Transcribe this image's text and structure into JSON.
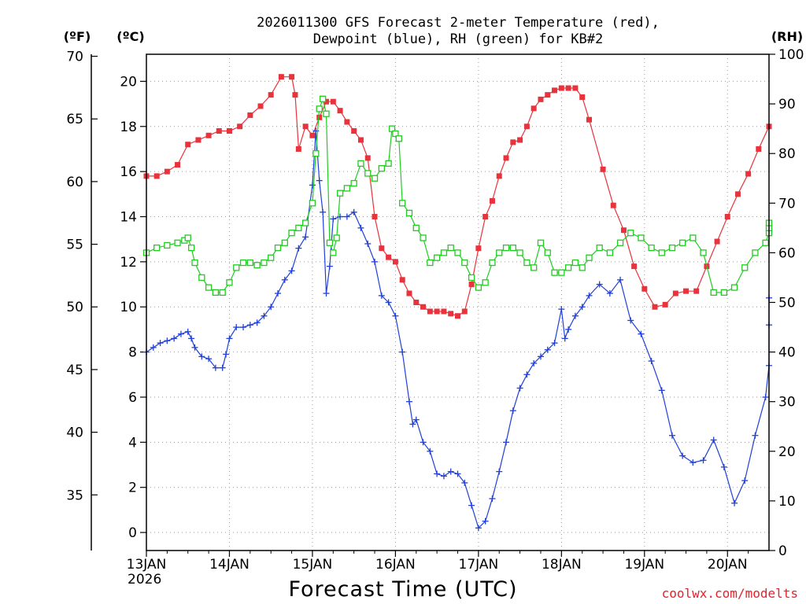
{
  "chart_data": {
    "type": "line",
    "title_line1": "2026011300 GFS Forecast 2-meter Temperature (red),",
    "title_line2": "Dewpoint (blue), RH (green) for KB#2",
    "xlabel": "Forecast Time (UTC)",
    "credit": "coolwx.com/modelts",
    "units": {
      "fahrenheit": "(ºF)",
      "celsius": "(ºC)",
      "rh": "(RH)"
    },
    "x_unit": "hours since 2026-01-13 00Z",
    "xlim": [
      0,
      180
    ],
    "celsius_axis": {
      "ylim": [
        -0.8,
        21.2
      ],
      "ticks": [
        "0",
        "2",
        "4",
        "6",
        "8",
        "10",
        "12",
        "14",
        "16",
        "18",
        "20"
      ]
    },
    "fahrenheit_axis": {
      "ticks": [
        "35",
        "40",
        "45",
        "50",
        "55",
        "60",
        "65",
        "70"
      ]
    },
    "rh_axis": {
      "ylim": [
        0,
        100
      ],
      "ticks": [
        "0",
        "10",
        "20",
        "30",
        "40",
        "50",
        "60",
        "70",
        "80",
        "90",
        "100"
      ]
    },
    "x_ticks": [
      {
        "label": "13JAN",
        "hour": 0
      },
      {
        "label": "14JAN",
        "hour": 24
      },
      {
        "label": "15JAN",
        "hour": 48
      },
      {
        "label": "16JAN",
        "hour": 72
      },
      {
        "label": "17JAN",
        "hour": 96
      },
      {
        "label": "18JAN",
        "hour": 120
      },
      {
        "label": "19JAN",
        "hour": 144
      },
      {
        "label": "20JAN",
        "hour": 168
      }
    ],
    "year_label": "2026",
    "series": [
      {
        "name": "Temperature",
        "axis": "celsius",
        "color": "#e8323c",
        "marker": "filled-square",
        "points": [
          [
            0,
            15.8
          ],
          [
            3,
            15.8
          ],
          [
            6,
            16.0
          ],
          [
            9,
            16.3
          ],
          [
            12,
            17.2
          ],
          [
            15,
            17.4
          ],
          [
            18,
            17.6
          ],
          [
            21,
            17.8
          ],
          [
            24,
            17.8
          ],
          [
            27,
            18.0
          ],
          [
            30,
            18.5
          ],
          [
            33,
            18.9
          ],
          [
            36,
            19.4
          ],
          [
            39,
            20.2
          ],
          [
            42,
            20.2
          ],
          [
            43,
            19.4
          ],
          [
            44,
            17.0
          ],
          [
            46,
            18.0
          ],
          [
            48,
            17.6
          ],
          [
            50,
            18.4
          ],
          [
            52,
            19.1
          ],
          [
            54,
            19.1
          ],
          [
            56,
            18.7
          ],
          [
            58,
            18.2
          ],
          [
            60,
            17.8
          ],
          [
            62,
            17.4
          ],
          [
            64,
            16.6
          ],
          [
            66,
            14.0
          ],
          [
            68,
            12.6
          ],
          [
            70,
            12.2
          ],
          [
            72,
            12.0
          ],
          [
            74,
            11.2
          ],
          [
            76,
            10.6
          ],
          [
            78,
            10.2
          ],
          [
            80,
            10.0
          ],
          [
            82,
            9.8
          ],
          [
            84,
            9.8
          ],
          [
            86,
            9.8
          ],
          [
            88,
            9.7
          ],
          [
            90,
            9.6
          ],
          [
            92,
            9.8
          ],
          [
            94,
            11.0
          ],
          [
            96,
            12.6
          ],
          [
            98,
            14.0
          ],
          [
            100,
            14.7
          ],
          [
            102,
            15.8
          ],
          [
            104,
            16.6
          ],
          [
            106,
            17.3
          ],
          [
            108,
            17.4
          ],
          [
            110,
            18.0
          ],
          [
            112,
            18.8
          ],
          [
            114,
            19.2
          ],
          [
            116,
            19.4
          ],
          [
            118,
            19.6
          ],
          [
            120,
            19.7
          ],
          [
            122,
            19.7
          ],
          [
            124,
            19.7
          ],
          [
            126,
            19.3
          ],
          [
            128,
            18.3
          ],
          [
            132,
            16.1
          ],
          [
            135,
            14.5
          ],
          [
            138,
            13.4
          ],
          [
            141,
            11.8
          ],
          [
            144,
            10.8
          ],
          [
            147,
            10.0
          ],
          [
            150,
            10.1
          ],
          [
            153,
            10.6
          ],
          [
            156,
            10.7
          ],
          [
            159,
            10.7
          ],
          [
            162,
            11.8
          ],
          [
            165,
            12.9
          ],
          [
            168,
            14.0
          ],
          [
            171,
            15.0
          ],
          [
            174,
            15.9
          ],
          [
            177,
            17.0
          ],
          [
            180,
            18.0
          ]
        ]
      },
      {
        "name": "Dewpoint",
        "axis": "celsius",
        "color": "#2040d8",
        "marker": "plus",
        "points": [
          [
            0,
            8.0
          ],
          [
            2,
            8.2
          ],
          [
            4,
            8.4
          ],
          [
            6,
            8.5
          ],
          [
            8,
            8.6
          ],
          [
            10,
            8.8
          ],
          [
            12,
            8.9
          ],
          [
            13,
            8.6
          ],
          [
            14,
            8.2
          ],
          [
            16,
            7.8
          ],
          [
            18,
            7.7
          ],
          [
            20,
            7.3
          ],
          [
            22,
            7.3
          ],
          [
            23,
            7.9
          ],
          [
            24,
            8.6
          ],
          [
            26,
            9.1
          ],
          [
            28,
            9.1
          ],
          [
            30,
            9.2
          ],
          [
            32,
            9.3
          ],
          [
            34,
            9.6
          ],
          [
            36,
            10.0
          ],
          [
            38,
            10.6
          ],
          [
            40,
            11.2
          ],
          [
            42,
            11.6
          ],
          [
            44,
            12.6
          ],
          [
            46,
            13.1
          ],
          [
            48,
            15.4
          ],
          [
            49,
            17.8
          ],
          [
            50,
            15.6
          ],
          [
            51,
            14.2
          ],
          [
            52,
            10.6
          ],
          [
            53,
            11.8
          ],
          [
            54,
            13.9
          ],
          [
            56,
            14.0
          ],
          [
            58,
            14.0
          ],
          [
            60,
            14.2
          ],
          [
            62,
            13.5
          ],
          [
            64,
            12.8
          ],
          [
            66,
            12.0
          ],
          [
            68,
            10.5
          ],
          [
            70,
            10.2
          ],
          [
            72,
            9.6
          ],
          [
            74,
            8.0
          ],
          [
            76,
            5.8
          ],
          [
            77,
            4.8
          ],
          [
            78,
            5.0
          ],
          [
            80,
            4.0
          ],
          [
            82,
            3.6
          ],
          [
            84,
            2.6
          ],
          [
            86,
            2.5
          ],
          [
            88,
            2.7
          ],
          [
            90,
            2.6
          ],
          [
            92,
            2.2
          ],
          [
            94,
            1.2
          ],
          [
            96,
            0.2
          ],
          [
            98,
            0.5
          ],
          [
            100,
            1.5
          ],
          [
            102,
            2.7
          ],
          [
            104,
            4.0
          ],
          [
            106,
            5.4
          ],
          [
            108,
            6.4
          ],
          [
            110,
            7.0
          ],
          [
            112,
            7.5
          ],
          [
            114,
            7.8
          ],
          [
            116,
            8.1
          ],
          [
            118,
            8.4
          ],
          [
            120,
            9.9
          ],
          [
            121,
            8.6
          ],
          [
            122,
            9.0
          ],
          [
            124,
            9.6
          ],
          [
            126,
            10.0
          ],
          [
            128,
            10.5
          ],
          [
            131,
            11.0
          ],
          [
            134,
            10.6
          ],
          [
            137,
            11.2
          ],
          [
            140,
            9.4
          ],
          [
            143,
            8.8
          ],
          [
            146,
            7.6
          ],
          [
            149,
            6.3
          ],
          [
            152,
            4.3
          ],
          [
            155,
            3.4
          ],
          [
            158,
            3.1
          ],
          [
            161,
            3.2
          ],
          [
            164,
            4.1
          ],
          [
            167,
            2.9
          ],
          [
            170,
            1.3
          ],
          [
            173,
            2.3
          ],
          [
            176,
            4.3
          ],
          [
            179,
            6.0
          ],
          [
            182,
            7.4
          ],
          [
            185,
            9.2
          ],
          [
            188,
            10.4
          ]
        ]
      },
      {
        "name": "RH",
        "axis": "rh",
        "color": "#20cc20",
        "marker": "open-square",
        "points": [
          [
            0,
            60
          ],
          [
            3,
            61
          ],
          [
            6,
            61.5
          ],
          [
            9,
            62
          ],
          [
            11,
            62.5
          ],
          [
            12,
            63
          ],
          [
            13,
            61
          ],
          [
            14,
            58
          ],
          [
            16,
            55
          ],
          [
            18,
            53
          ],
          [
            20,
            52
          ],
          [
            22,
            52
          ],
          [
            24,
            54
          ],
          [
            26,
            57
          ],
          [
            28,
            58
          ],
          [
            30,
            58
          ],
          [
            32,
            57.5
          ],
          [
            34,
            58
          ],
          [
            36,
            59
          ],
          [
            38,
            61
          ],
          [
            40,
            62
          ],
          [
            42,
            64
          ],
          [
            44,
            65
          ],
          [
            46,
            66
          ],
          [
            48,
            70
          ],
          [
            49,
            80
          ],
          [
            50,
            89
          ],
          [
            51,
            91
          ],
          [
            52,
            88
          ],
          [
            53,
            62
          ],
          [
            54,
            60
          ],
          [
            55,
            63
          ],
          [
            56,
            72
          ],
          [
            58,
            73
          ],
          [
            60,
            74
          ],
          [
            62,
            78
          ],
          [
            64,
            76
          ],
          [
            66,
            75
          ],
          [
            68,
            77
          ],
          [
            70,
            78
          ],
          [
            71,
            85
          ],
          [
            72,
            84
          ],
          [
            73,
            83
          ],
          [
            74,
            70
          ],
          [
            76,
            68
          ],
          [
            78,
            65
          ],
          [
            80,
            63
          ],
          [
            82,
            58
          ],
          [
            84,
            59
          ],
          [
            86,
            60
          ],
          [
            88,
            61
          ],
          [
            90,
            60
          ],
          [
            92,
            58
          ],
          [
            94,
            55
          ],
          [
            96,
            53
          ],
          [
            98,
            54
          ],
          [
            100,
            58
          ],
          [
            102,
            60
          ],
          [
            104,
            61
          ],
          [
            106,
            61
          ],
          [
            108,
            60
          ],
          [
            110,
            58
          ],
          [
            112,
            57
          ],
          [
            114,
            62
          ],
          [
            116,
            60
          ],
          [
            118,
            56
          ],
          [
            120,
            56
          ],
          [
            122,
            57
          ],
          [
            124,
            58
          ],
          [
            126,
            57
          ],
          [
            128,
            59
          ],
          [
            131,
            61
          ],
          [
            134,
            60
          ],
          [
            137,
            62
          ],
          [
            140,
            64
          ],
          [
            143,
            63
          ],
          [
            146,
            61
          ],
          [
            149,
            60
          ],
          [
            152,
            61
          ],
          [
            155,
            62
          ],
          [
            158,
            63
          ],
          [
            161,
            60
          ],
          [
            164,
            52
          ],
          [
            167,
            52
          ],
          [
            170,
            53
          ],
          [
            173,
            57
          ],
          [
            176,
            60
          ],
          [
            179,
            62
          ],
          [
            182,
            64
          ],
          [
            185,
            65
          ],
          [
            188,
            66
          ]
        ]
      }
    ]
  }
}
